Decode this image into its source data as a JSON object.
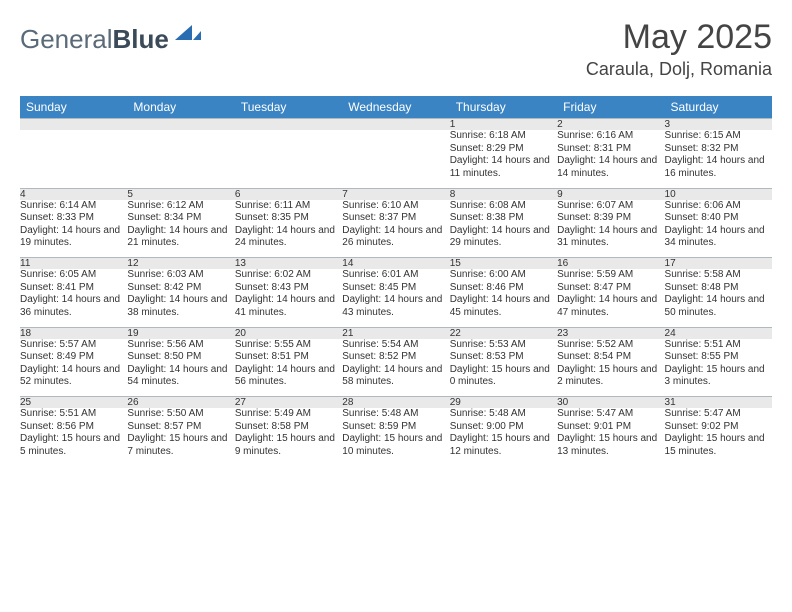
{
  "brand": {
    "part1": "General",
    "part2": "Blue"
  },
  "title": "May 2025",
  "location": "Caraula, Dolj, Romania",
  "colors": {
    "header_bg": "#3b84c4",
    "header_fg": "#ffffff",
    "daynum_bg": "#e9e9e9",
    "row_border": "#b0b8c0",
    "text": "#333333",
    "logo_gray": "#5a6a78",
    "logo_dark": "#3a4a58",
    "logo_shape": "#2a6db0"
  },
  "daysOfWeek": [
    "Sunday",
    "Monday",
    "Tuesday",
    "Wednesday",
    "Thursday",
    "Friday",
    "Saturday"
  ],
  "weeks": [
    {
      "nums": [
        "",
        "",
        "",
        "",
        "1",
        "2",
        "3"
      ],
      "info": [
        null,
        null,
        null,
        null,
        {
          "sunrise": "Sunrise: 6:18 AM",
          "sunset": "Sunset: 8:29 PM",
          "daylight": "Daylight: 14 hours and 11 minutes."
        },
        {
          "sunrise": "Sunrise: 6:16 AM",
          "sunset": "Sunset: 8:31 PM",
          "daylight": "Daylight: 14 hours and 14 minutes."
        },
        {
          "sunrise": "Sunrise: 6:15 AM",
          "sunset": "Sunset: 8:32 PM",
          "daylight": "Daylight: 14 hours and 16 minutes."
        }
      ]
    },
    {
      "nums": [
        "4",
        "5",
        "6",
        "7",
        "8",
        "9",
        "10"
      ],
      "info": [
        {
          "sunrise": "Sunrise: 6:14 AM",
          "sunset": "Sunset: 8:33 PM",
          "daylight": "Daylight: 14 hours and 19 minutes."
        },
        {
          "sunrise": "Sunrise: 6:12 AM",
          "sunset": "Sunset: 8:34 PM",
          "daylight": "Daylight: 14 hours and 21 minutes."
        },
        {
          "sunrise": "Sunrise: 6:11 AM",
          "sunset": "Sunset: 8:35 PM",
          "daylight": "Daylight: 14 hours and 24 minutes."
        },
        {
          "sunrise": "Sunrise: 6:10 AM",
          "sunset": "Sunset: 8:37 PM",
          "daylight": "Daylight: 14 hours and 26 minutes."
        },
        {
          "sunrise": "Sunrise: 6:08 AM",
          "sunset": "Sunset: 8:38 PM",
          "daylight": "Daylight: 14 hours and 29 minutes."
        },
        {
          "sunrise": "Sunrise: 6:07 AM",
          "sunset": "Sunset: 8:39 PM",
          "daylight": "Daylight: 14 hours and 31 minutes."
        },
        {
          "sunrise": "Sunrise: 6:06 AM",
          "sunset": "Sunset: 8:40 PM",
          "daylight": "Daylight: 14 hours and 34 minutes."
        }
      ]
    },
    {
      "nums": [
        "11",
        "12",
        "13",
        "14",
        "15",
        "16",
        "17"
      ],
      "info": [
        {
          "sunrise": "Sunrise: 6:05 AM",
          "sunset": "Sunset: 8:41 PM",
          "daylight": "Daylight: 14 hours and 36 minutes."
        },
        {
          "sunrise": "Sunrise: 6:03 AM",
          "sunset": "Sunset: 8:42 PM",
          "daylight": "Daylight: 14 hours and 38 minutes."
        },
        {
          "sunrise": "Sunrise: 6:02 AM",
          "sunset": "Sunset: 8:43 PM",
          "daylight": "Daylight: 14 hours and 41 minutes."
        },
        {
          "sunrise": "Sunrise: 6:01 AM",
          "sunset": "Sunset: 8:45 PM",
          "daylight": "Daylight: 14 hours and 43 minutes."
        },
        {
          "sunrise": "Sunrise: 6:00 AM",
          "sunset": "Sunset: 8:46 PM",
          "daylight": "Daylight: 14 hours and 45 minutes."
        },
        {
          "sunrise": "Sunrise: 5:59 AM",
          "sunset": "Sunset: 8:47 PM",
          "daylight": "Daylight: 14 hours and 47 minutes."
        },
        {
          "sunrise": "Sunrise: 5:58 AM",
          "sunset": "Sunset: 8:48 PM",
          "daylight": "Daylight: 14 hours and 50 minutes."
        }
      ]
    },
    {
      "nums": [
        "18",
        "19",
        "20",
        "21",
        "22",
        "23",
        "24"
      ],
      "info": [
        {
          "sunrise": "Sunrise: 5:57 AM",
          "sunset": "Sunset: 8:49 PM",
          "daylight": "Daylight: 14 hours and 52 minutes."
        },
        {
          "sunrise": "Sunrise: 5:56 AM",
          "sunset": "Sunset: 8:50 PM",
          "daylight": "Daylight: 14 hours and 54 minutes."
        },
        {
          "sunrise": "Sunrise: 5:55 AM",
          "sunset": "Sunset: 8:51 PM",
          "daylight": "Daylight: 14 hours and 56 minutes."
        },
        {
          "sunrise": "Sunrise: 5:54 AM",
          "sunset": "Sunset: 8:52 PM",
          "daylight": "Daylight: 14 hours and 58 minutes."
        },
        {
          "sunrise": "Sunrise: 5:53 AM",
          "sunset": "Sunset: 8:53 PM",
          "daylight": "Daylight: 15 hours and 0 minutes."
        },
        {
          "sunrise": "Sunrise: 5:52 AM",
          "sunset": "Sunset: 8:54 PM",
          "daylight": "Daylight: 15 hours and 2 minutes."
        },
        {
          "sunrise": "Sunrise: 5:51 AM",
          "sunset": "Sunset: 8:55 PM",
          "daylight": "Daylight: 15 hours and 3 minutes."
        }
      ]
    },
    {
      "nums": [
        "25",
        "26",
        "27",
        "28",
        "29",
        "30",
        "31"
      ],
      "info": [
        {
          "sunrise": "Sunrise: 5:51 AM",
          "sunset": "Sunset: 8:56 PM",
          "daylight": "Daylight: 15 hours and 5 minutes."
        },
        {
          "sunrise": "Sunrise: 5:50 AM",
          "sunset": "Sunset: 8:57 PM",
          "daylight": "Daylight: 15 hours and 7 minutes."
        },
        {
          "sunrise": "Sunrise: 5:49 AM",
          "sunset": "Sunset: 8:58 PM",
          "daylight": "Daylight: 15 hours and 9 minutes."
        },
        {
          "sunrise": "Sunrise: 5:48 AM",
          "sunset": "Sunset: 8:59 PM",
          "daylight": "Daylight: 15 hours and 10 minutes."
        },
        {
          "sunrise": "Sunrise: 5:48 AM",
          "sunset": "Sunset: 9:00 PM",
          "daylight": "Daylight: 15 hours and 12 minutes."
        },
        {
          "sunrise": "Sunrise: 5:47 AM",
          "sunset": "Sunset: 9:01 PM",
          "daylight": "Daylight: 15 hours and 13 minutes."
        },
        {
          "sunrise": "Sunrise: 5:47 AM",
          "sunset": "Sunset: 9:02 PM",
          "daylight": "Daylight: 15 hours and 15 minutes."
        }
      ]
    }
  ]
}
